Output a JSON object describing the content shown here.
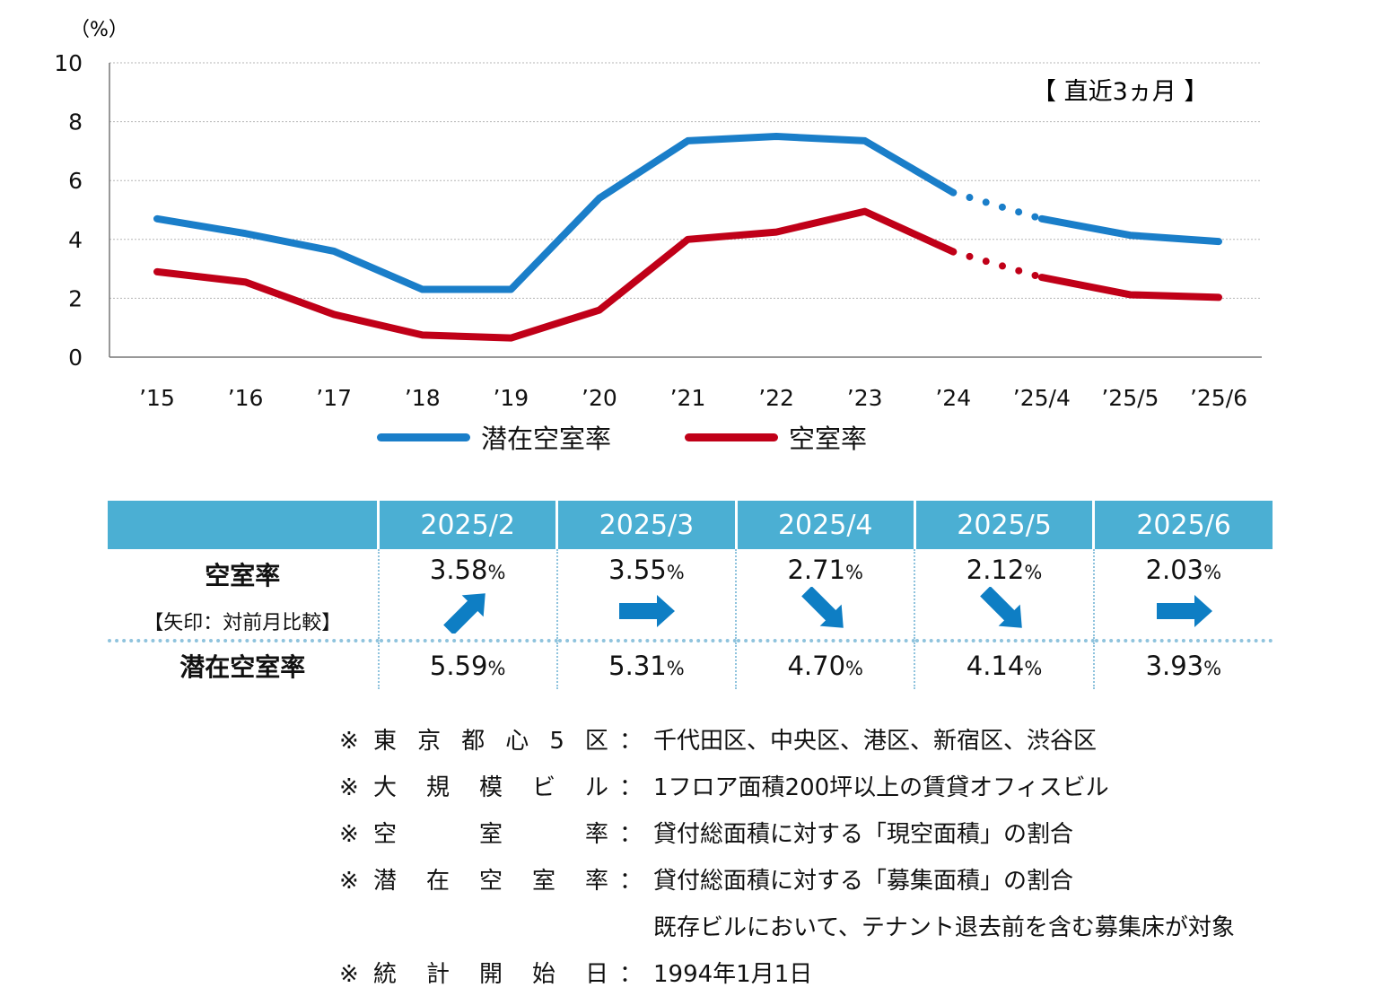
{
  "chart_data": {
    "type": "line",
    "y_unit_label": "（%）",
    "ylim": [
      0,
      10
    ],
    "yticks": [
      0,
      2,
      4,
      6,
      8,
      10
    ],
    "categories": [
      "’15",
      "’16",
      "’17",
      "’18",
      "’19",
      "’20",
      "’21",
      "’22",
      "’23",
      "’24",
      "’25/4",
      "’25/5",
      "’25/6"
    ],
    "annotation": "【 直近3ヵ月 】",
    "series": [
      {
        "name": "潜在空室率",
        "color": "#1a7ec9",
        "values": [
          4.7,
          4.2,
          3.6,
          2.3,
          2.3,
          5.4,
          7.35,
          7.5,
          7.35,
          5.59,
          4.7,
          4.14,
          3.93
        ]
      },
      {
        "name": "空室率",
        "color": "#c00018",
        "values": [
          2.9,
          2.55,
          1.45,
          0.75,
          0.65,
          1.6,
          4.0,
          4.25,
          4.95,
          3.58,
          2.71,
          2.12,
          2.03
        ]
      }
    ],
    "dotted_segment": {
      "from_index": 9,
      "to_index": 10
    }
  },
  "table": {
    "columns": [
      "2025/2",
      "2025/3",
      "2025/4",
      "2025/5",
      "2025/6"
    ],
    "vacancy_label": "空室率",
    "vacancy_sublabel": "【矢印：対前月比較】",
    "vacancy_values": [
      "3.58",
      "3.55",
      "2.71",
      "2.12",
      "2.03"
    ],
    "arrows": [
      "up-right",
      "right",
      "down-right",
      "down-right",
      "right"
    ],
    "potential_label": "潜在空室率",
    "potential_values": [
      "5.59",
      "5.31",
      "4.70",
      "4.14",
      "3.93"
    ],
    "unit": "%",
    "arrow_color": "#0e7ec4"
  },
  "notes": {
    "mark": "※",
    "colon": "：",
    "rows": [
      {
        "key": [
          "東",
          "京",
          "都",
          "心",
          "5",
          "区"
        ],
        "value": "千代田区、中央区、港区、新宿区、渋谷区"
      },
      {
        "key": [
          "大",
          "規",
          "模",
          "ビ",
          "ル"
        ],
        "value": "1フロア面積200坪以上の賃貸オフィスビル"
      },
      {
        "key": [
          "空",
          "室",
          "率"
        ],
        "value": "貸付総面積に対する「現空面積」の割合"
      },
      {
        "key": [
          "潜",
          "在",
          "空",
          "室",
          "率"
        ],
        "value": "貸付総面積に対する「募集面積」の割合"
      }
    ],
    "continuation": "既存ビルにおいて、テナント退去前を含む募集床が対象",
    "last_row": {
      "key": [
        "統",
        "計",
        "開",
        "始",
        "日"
      ],
      "value": "1994年1月1日"
    }
  }
}
